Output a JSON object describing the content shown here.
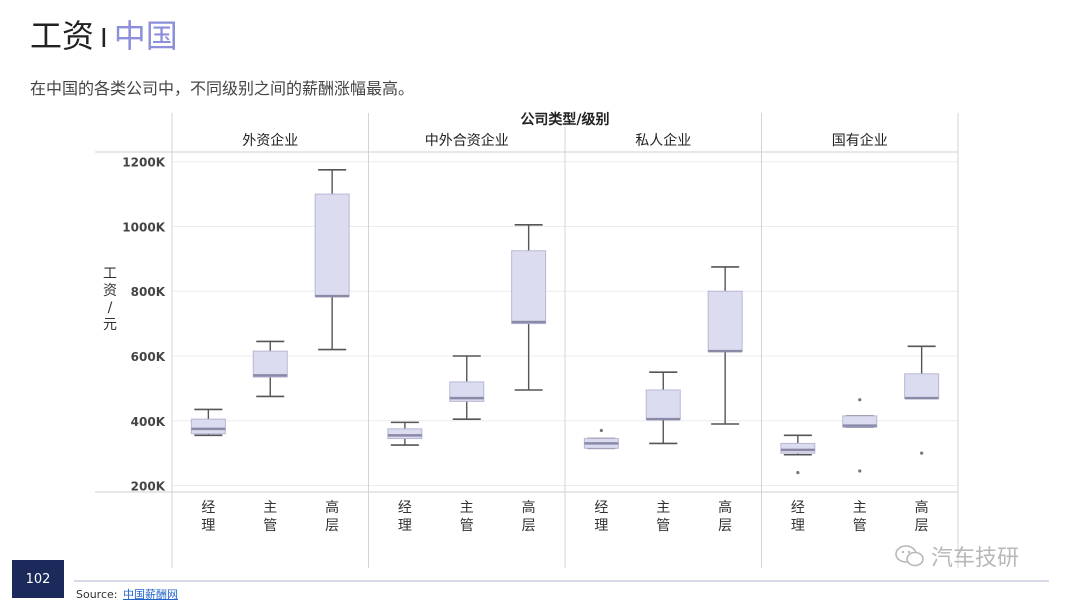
{
  "header": {
    "title_main": "工资",
    "title_sep": "I",
    "title_sub": "中国",
    "subtitle": "在中国的各类公司中，不同级别之间的薪酬涨幅最高。"
  },
  "footer": {
    "page_number": "102",
    "source_label": "Source:",
    "source_link": "中国薪酬网",
    "watermark": "汽车技研"
  },
  "chart_data": {
    "type": "box",
    "title": "公司类型/级别",
    "ylabel": "工资/元",
    "ylim": [
      180000,
      1230000
    ],
    "yticks": [
      200000,
      400000,
      600000,
      800000,
      1000000,
      1200000
    ],
    "ytick_labels": [
      "200K",
      "400K",
      "600K",
      "800K",
      "1000K",
      "1200K"
    ],
    "box_color": "#dcdcf0",
    "panels": [
      {
        "name": "外资企业",
        "boxes": [
          {
            "level": "经理",
            "min": 355000,
            "q1": 360000,
            "median": 375000,
            "q3": 405000,
            "max": 435000,
            "outliers": []
          },
          {
            "level": "主管",
            "min": 475000,
            "q1": 535000,
            "median": 540000,
            "q3": 615000,
            "max": 645000,
            "outliers": []
          },
          {
            "level": "高层",
            "min": 620000,
            "q1": 785000,
            "median": 785000,
            "q3": 1100000,
            "max": 1175000,
            "outliers": []
          }
        ]
      },
      {
        "name": "中外合资企业",
        "boxes": [
          {
            "level": "经理",
            "min": 325000,
            "q1": 345000,
            "median": 355000,
            "q3": 375000,
            "max": 395000,
            "outliers": []
          },
          {
            "level": "主管",
            "min": 405000,
            "q1": 460000,
            "median": 470000,
            "q3": 520000,
            "max": 600000,
            "outliers": []
          },
          {
            "level": "高层",
            "min": 495000,
            "q1": 700000,
            "median": 705000,
            "q3": 925000,
            "max": 1005000,
            "outliers": []
          }
        ]
      },
      {
        "name": "私人企业",
        "boxes": [
          {
            "level": "经理",
            "min": 315000,
            "q1": 315000,
            "median": 330000,
            "q3": 345000,
            "max": 345000,
            "outliers": [
              370000
            ]
          },
          {
            "level": "主管",
            "min": 330000,
            "q1": 405000,
            "median": 405000,
            "q3": 495000,
            "max": 550000,
            "outliers": []
          },
          {
            "level": "高层",
            "min": 390000,
            "q1": 615000,
            "median": 615000,
            "q3": 800000,
            "max": 875000,
            "outliers": []
          }
        ]
      },
      {
        "name": "国有企业",
        "boxes": [
          {
            "level": "经理",
            "min": 295000,
            "q1": 300000,
            "median": 310000,
            "q3": 330000,
            "max": 355000,
            "outliers": [
              240000
            ]
          },
          {
            "level": "主管",
            "min": 380000,
            "q1": 380000,
            "median": 385000,
            "q3": 415000,
            "max": 415000,
            "outliers": [
              465000,
              245000
            ]
          },
          {
            "level": "高层",
            "min": 470000,
            "q1": 470000,
            "median": 470000,
            "q3": 545000,
            "max": 630000,
            "outliers": [
              300000
            ]
          }
        ]
      }
    ]
  }
}
